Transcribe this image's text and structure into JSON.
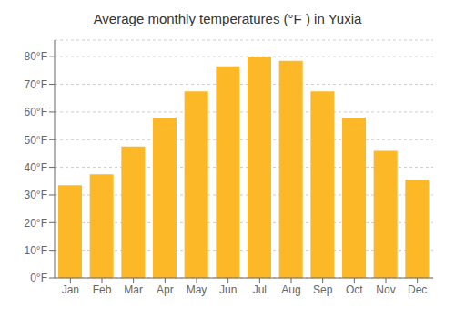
{
  "chart_data": {
    "type": "bar",
    "title": "Average monthly temperatures (°F ) in Yuxia",
    "categories": [
      "Jan",
      "Feb",
      "Mar",
      "Apr",
      "May",
      "Jun",
      "Jul",
      "Aug",
      "Sep",
      "Oct",
      "Nov",
      "Dec"
    ],
    "values": [
      33.5,
      37.5,
      47.5,
      58.0,
      67.5,
      76.5,
      80.0,
      78.5,
      67.5,
      58.0,
      46.0,
      35.5
    ],
    "color": "#FDB827",
    "ylim": [
      0,
      86
    ],
    "yticks": [
      {
        "value": 0,
        "label": "0°F"
      },
      {
        "value": 10,
        "label": "10°F"
      },
      {
        "value": 20,
        "label": "20°F"
      },
      {
        "value": 30,
        "label": "30°F"
      },
      {
        "value": 40,
        "label": "40°F"
      },
      {
        "value": 50,
        "label": "50°F"
      },
      {
        "value": 60,
        "label": "60°F"
      },
      {
        "value": 70,
        "label": "70°F"
      },
      {
        "value": 80,
        "label": "80°F"
      }
    ],
    "grid": true
  }
}
